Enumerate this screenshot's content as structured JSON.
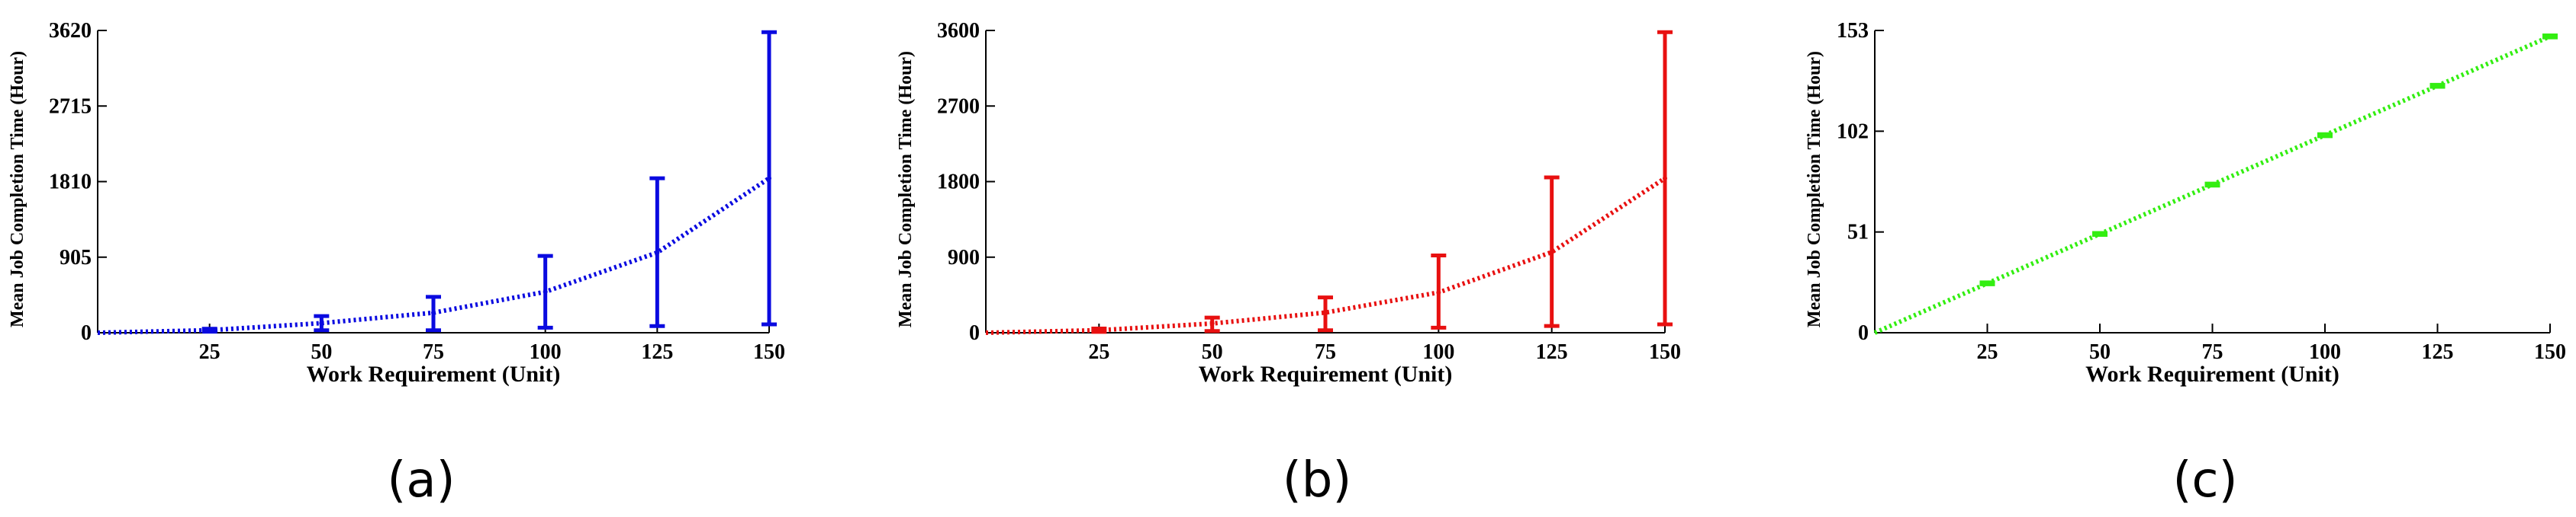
{
  "chart_data": [
    {
      "type": "line",
      "caption": "(a)",
      "xlabel": "Work Requirement (Unit)",
      "ylabel": "Mean Job Completion Time (Hour)",
      "xlim": [
        0,
        150
      ],
      "ylim": [
        0,
        3620
      ],
      "x_ticks": [
        25,
        50,
        75,
        100,
        125,
        150
      ],
      "y_ticks": [
        "0",
        "905",
        "1810",
        "2715",
        "3620"
      ],
      "color": "#0a0ae0",
      "series": [
        {
          "x": [
            0,
            25,
            50,
            75,
            100,
            125,
            150
          ],
          "y": [
            0,
            30,
            115,
            240,
            490,
            960,
            1850
          ],
          "err_low": [
            null,
            12,
            30,
            30,
            60,
            80,
            100
          ],
          "err_high": [
            null,
            48,
            200,
            430,
            920,
            1850,
            3600
          ]
        }
      ]
    },
    {
      "type": "line",
      "caption": "(b)",
      "xlabel": "Work Requirement (Unit)",
      "ylabel": "Mean Job Completion Time (Hour)",
      "xlim": [
        0,
        150
      ],
      "ylim": [
        0,
        3600
      ],
      "x_ticks": [
        25,
        50,
        75,
        100,
        125,
        150
      ],
      "y_ticks": [
        "0",
        "900",
        "1800",
        "2700",
        "3600"
      ],
      "color": "#e81010",
      "series": [
        {
          "x": [
            0,
            25,
            50,
            75,
            100,
            125,
            150
          ],
          "y": [
            0,
            30,
            110,
            240,
            480,
            960,
            1840
          ],
          "err_low": [
            null,
            10,
            20,
            30,
            60,
            80,
            100
          ],
          "err_high": [
            null,
            50,
            180,
            420,
            920,
            1850,
            3580
          ]
        }
      ]
    },
    {
      "type": "line",
      "caption": "(c)",
      "xlabel": "Work Requirement (Unit)",
      "ylabel": "Mean Job Completion Time (Hour)",
      "xlim": [
        0,
        150
      ],
      "ylim": [
        0,
        153
      ],
      "x_ticks": [
        25,
        50,
        75,
        100,
        125,
        150
      ],
      "y_ticks": [
        "0",
        "51",
        "102",
        "153"
      ],
      "color": "#33ee11",
      "series": [
        {
          "x": [
            0,
            25,
            50,
            75,
            100,
            125,
            150
          ],
          "y": [
            0,
            25,
            50,
            75,
            100,
            125,
            150
          ],
          "err_low": [
            null,
            24.5,
            49.5,
            74.5,
            99.5,
            124.5,
            149.5
          ],
          "err_high": [
            null,
            25.5,
            50.5,
            75.5,
            100.5,
            125.5,
            150.5
          ]
        }
      ]
    }
  ]
}
